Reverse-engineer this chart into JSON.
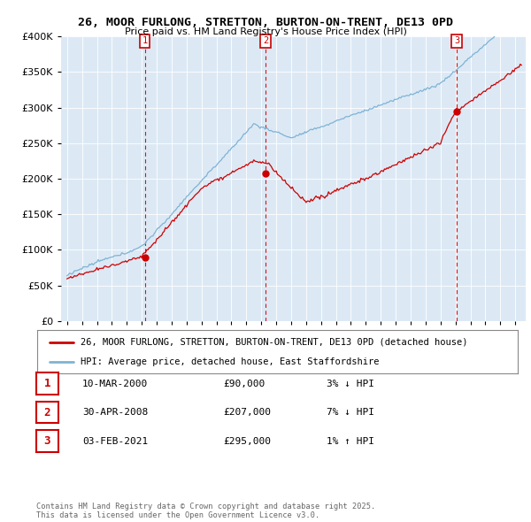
{
  "title": "26, MOOR FURLONG, STRETTON, BURTON-ON-TRENT, DE13 0PD",
  "subtitle": "Price paid vs. HM Land Registry's House Price Index (HPI)",
  "legend_line1": "26, MOOR FURLONG, STRETTON, BURTON-ON-TRENT, DE13 0PD (detached house)",
  "legend_line2": "HPI: Average price, detached house, East Staffordshire",
  "transactions": [
    {
      "num": 1,
      "date": "10-MAR-2000",
      "price": 90000,
      "pct": "3%",
      "dir": "↓",
      "rel": "HPI"
    },
    {
      "num": 2,
      "date": "30-APR-2008",
      "price": 207000,
      "pct": "7%",
      "dir": "↓",
      "rel": "HPI"
    },
    {
      "num": 3,
      "date": "03-FEB-2021",
      "price": 295000,
      "pct": "1%",
      "dir": "↑",
      "rel": "HPI"
    }
  ],
  "footer": "Contains HM Land Registry data © Crown copyright and database right 2025.\nThis data is licensed under the Open Government Licence v3.0.",
  "house_color": "#cc0000",
  "hpi_color": "#7fb3d3",
  "marker_color": "#cc0000",
  "vline_color": "#cc0000",
  "ylim": [
    0,
    400000
  ],
  "yticks": [
    0,
    50000,
    100000,
    150000,
    200000,
    250000,
    300000,
    350000,
    400000
  ],
  "plot_bg_color": "#dce9f5",
  "background_color": "#ffffff",
  "grid_color": "#ffffff"
}
